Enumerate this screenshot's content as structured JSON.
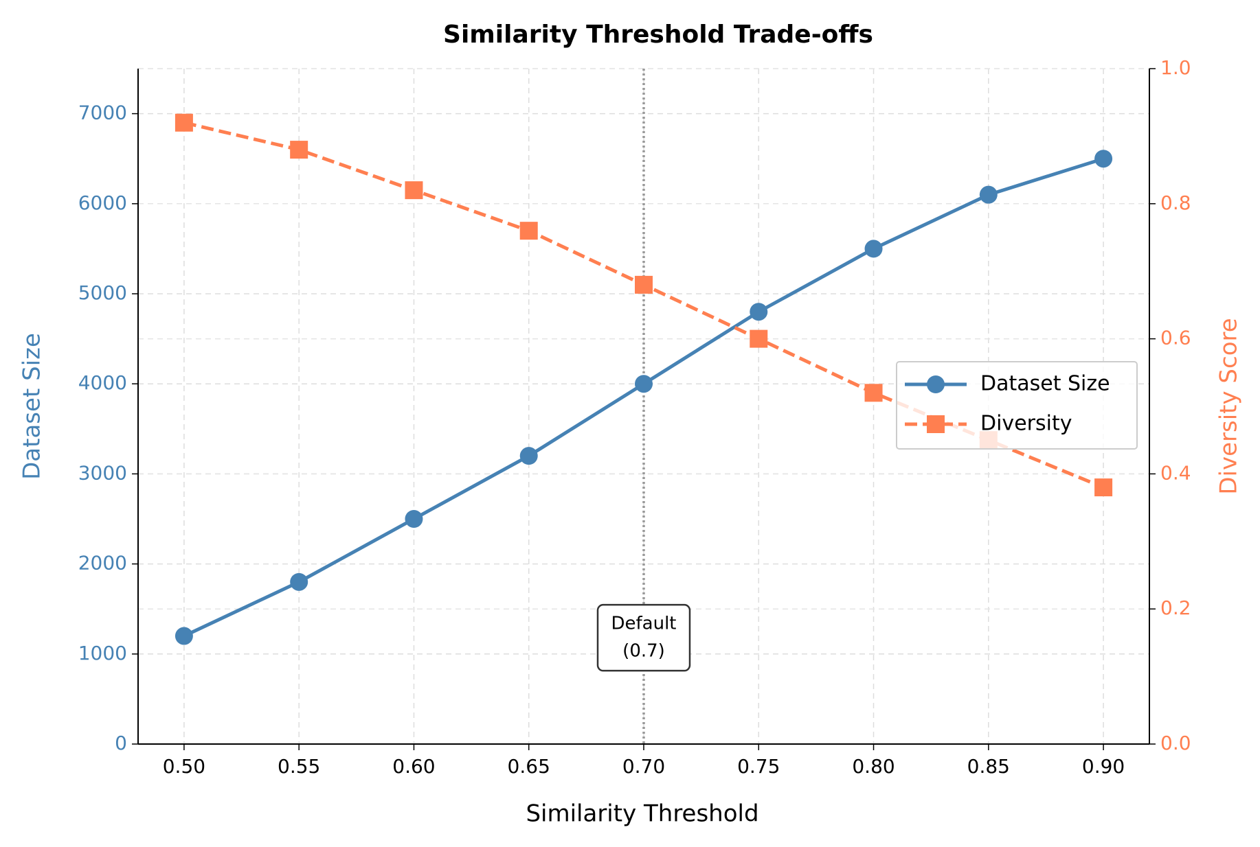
{
  "chart_data": {
    "type": "line",
    "title": "Similarity Threshold Trade-offs",
    "x_label": "Similarity Threshold",
    "y_label": "Dataset Size",
    "y2_label": "Diversity Score",
    "x": [
      0.5,
      0.55,
      0.6,
      0.65,
      0.7,
      0.75,
      0.8,
      0.85,
      0.9
    ],
    "series": [
      {
        "name": "Dataset Size",
        "color": "#4682b4",
        "marker": "circle",
        "dash": "solid",
        "values": [
          1200,
          1800,
          2500,
          3200,
          4000,
          4800,
          5500,
          6100,
          6500
        ]
      },
      {
        "name": "Diversity",
        "color": "#ff7f50",
        "marker": "square",
        "dash": "dashed",
        "axis": "y2",
        "values": [
          0.92,
          0.88,
          0.82,
          0.76,
          0.68,
          0.6,
          0.52,
          0.45,
          0.38
        ]
      }
    ],
    "xlim": [
      0.48,
      0.92
    ],
    "xticks": [
      {
        "value": 0.5,
        "label": "0.50"
      },
      {
        "value": 0.55,
        "label": "0.55"
      },
      {
        "value": 0.6,
        "label": "0.60"
      },
      {
        "value": 0.65,
        "label": "0.65"
      },
      {
        "value": 0.7,
        "label": "0.70"
      },
      {
        "value": 0.75,
        "label": "0.75"
      },
      {
        "value": 0.8,
        "label": "0.80"
      },
      {
        "value": 0.85,
        "label": "0.85"
      },
      {
        "value": 0.9,
        "label": "0.90"
      }
    ],
    "ylim": [
      0,
      7500
    ],
    "yticks": [
      0,
      1000,
      2000,
      3000,
      4000,
      5000,
      6000,
      7000
    ],
    "y2lim": [
      0,
      1
    ],
    "y2ticks": [
      {
        "value": 0,
        "label": "0.0"
      },
      0.2,
      0.4,
      0.6,
      0.8,
      {
        "value": 1,
        "label": "1.0"
      }
    ],
    "reference_line": 0.7,
    "annotation": [
      "Default",
      "(0.7)"
    ],
    "grid": true,
    "legend": "center right"
  }
}
